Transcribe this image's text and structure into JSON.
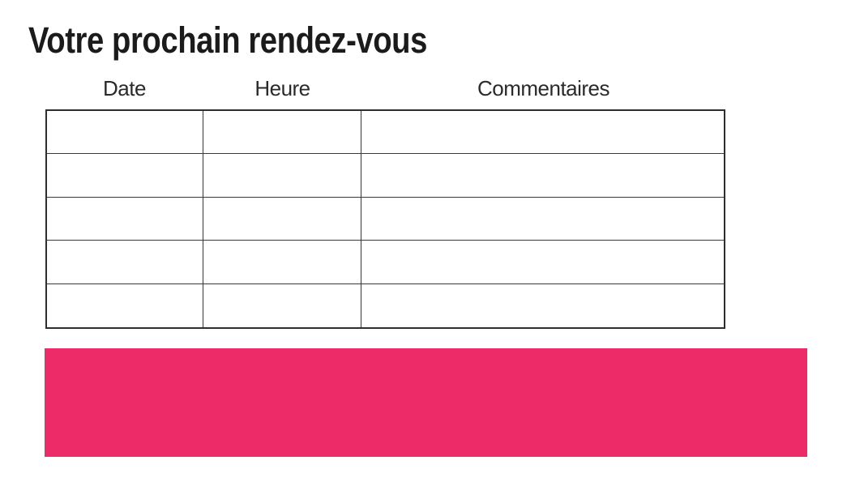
{
  "title": "Votre prochain rendez-vous",
  "table": {
    "headers": [
      "Date",
      "Heure",
      "Commentaires"
    ],
    "rows": [
      [
        "",
        "",
        ""
      ],
      [
        "",
        "",
        ""
      ],
      [
        "",
        "",
        ""
      ],
      [
        "",
        "",
        ""
      ],
      [
        "",
        "",
        ""
      ]
    ]
  },
  "banner": {
    "label": ""
  },
  "colors": {
    "banner_pink": "#ED2B68",
    "table_border": "#333333",
    "title_text": "#1B1B1B"
  }
}
